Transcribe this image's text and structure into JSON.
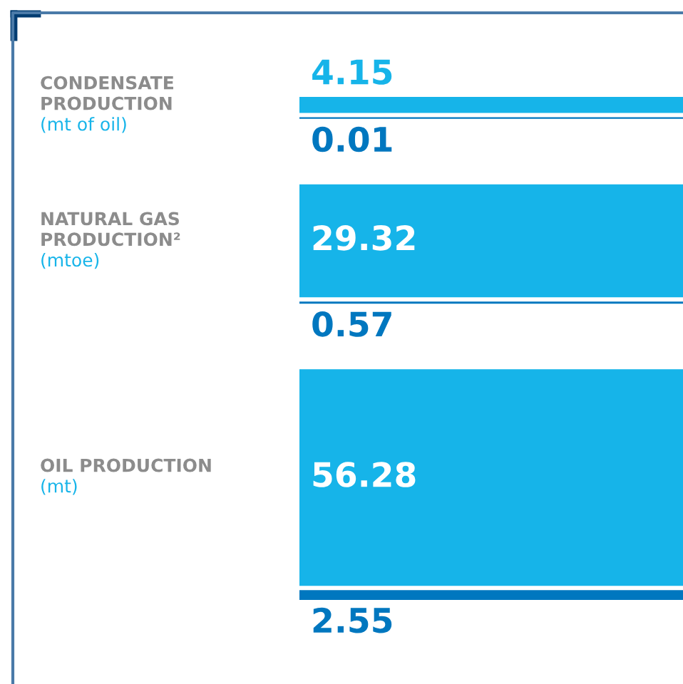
{
  "chart_data": {
    "type": "other",
    "categories": [
      "CONDENSATE\nPRODUCTION",
      "NATURAL GAS\nPRODUCTION²",
      "OIL PRODUCTION"
    ],
    "annotations": [
      "(mt of oil)",
      "(mtoe)",
      "(mt)"
    ],
    "series": [
      {
        "color": "#16b4e9",
        "values": [
          4.15,
          29.32,
          56.28
        ]
      },
      {
        "color": "#0077bf",
        "values": [
          0.01,
          0.57,
          2.55
        ]
      }
    ],
    "data_labels": true,
    "legend": false
  }
}
